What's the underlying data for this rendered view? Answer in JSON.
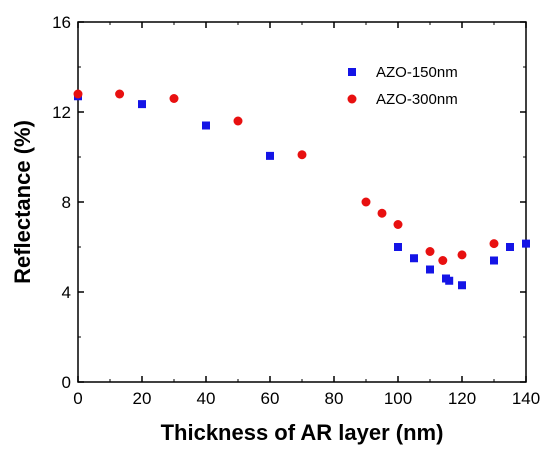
{
  "chart_data": {
    "type": "scatter",
    "title": "",
    "xlabel": "Thickness of AR layer (nm)",
    "ylabel": "Reflectance (%)",
    "xlim": [
      0,
      140
    ],
    "ylim": [
      0,
      16
    ],
    "x_ticks": [
      "0",
      "20",
      "40",
      "60",
      "80",
      "100",
      "120",
      "140"
    ],
    "y_ticks": [
      "0",
      "4",
      "8",
      "12",
      "16"
    ],
    "grid": false,
    "legend_position": "top-right",
    "series": [
      {
        "name": "AZO-150nm",
        "marker": "square",
        "color": "#1414e6",
        "points": [
          {
            "x": 0,
            "y": 12.7
          },
          {
            "x": 20,
            "y": 12.35
          },
          {
            "x": 40,
            "y": 11.4
          },
          {
            "x": 60,
            "y": 10.05
          },
          {
            "x": 100,
            "y": 6.0
          },
          {
            "x": 105,
            "y": 5.5
          },
          {
            "x": 110,
            "y": 5.0
          },
          {
            "x": 115,
            "y": 4.6
          },
          {
            "x": 116,
            "y": 4.5
          },
          {
            "x": 120,
            "y": 4.3
          },
          {
            "x": 130,
            "y": 5.4
          },
          {
            "x": 135,
            "y": 6.0
          },
          {
            "x": 140,
            "y": 6.15
          }
        ]
      },
      {
        "name": "AZO-300nm",
        "marker": "circle",
        "color": "#e81010",
        "points": [
          {
            "x": 0,
            "y": 12.8
          },
          {
            "x": 13,
            "y": 12.8
          },
          {
            "x": 30,
            "y": 12.6
          },
          {
            "x": 50,
            "y": 11.6
          },
          {
            "x": 70,
            "y": 10.1
          },
          {
            "x": 90,
            "y": 8.0
          },
          {
            "x": 95,
            "y": 7.5
          },
          {
            "x": 100,
            "y": 7.0
          },
          {
            "x": 110,
            "y": 5.8
          },
          {
            "x": 114,
            "y": 5.4
          },
          {
            "x": 120,
            "y": 5.65
          },
          {
            "x": 130,
            "y": 6.15
          }
        ]
      }
    ]
  }
}
